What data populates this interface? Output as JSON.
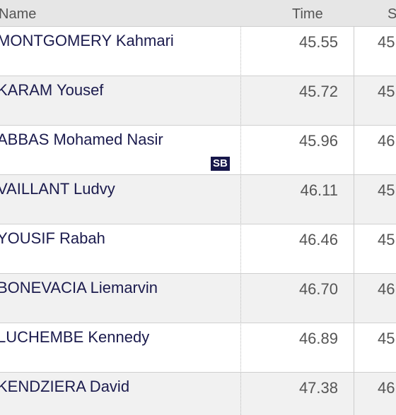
{
  "header": {
    "name": "Name",
    "time": "Time",
    "extra": "S"
  },
  "rows": [
    {
      "name": "MONTGOMERY Kahmari",
      "time": "45.55",
      "extra": "45"
    },
    {
      "name": "KARAM Yousef",
      "time": "45.72",
      "extra": "45"
    },
    {
      "name": "ABBAS Mohamed Nasir",
      "time": "45.96",
      "extra": "46",
      "badge": "SB"
    },
    {
      "name": "VAILLANT Ludvy",
      "time": "46.11",
      "extra": "45"
    },
    {
      "name": "YOUSIF Rabah",
      "time": "46.46",
      "extra": "45"
    },
    {
      "name": "BONEVACIA Liemarvin",
      "time": "46.70",
      "extra": "46"
    },
    {
      "name": "LUCHEMBE Kennedy",
      "time": "46.89",
      "extra": "45"
    },
    {
      "name": "KENDZIERA David",
      "time": "47.38",
      "extra": "46"
    }
  ]
}
